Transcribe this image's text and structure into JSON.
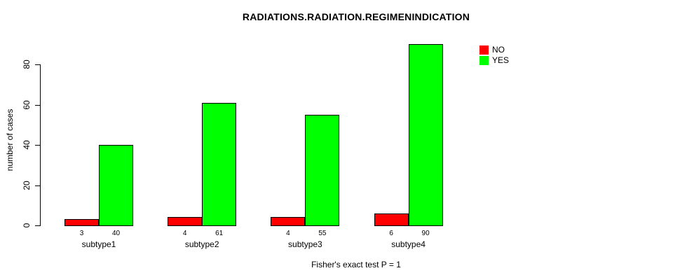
{
  "chart_data": {
    "type": "bar",
    "title": "RADIATIONS.RADIATION.REGIMENINDICATION",
    "xlabel": "Fisher's exact test P = 1",
    "ylabel": "number of cases",
    "categories": [
      "subtype1",
      "subtype2",
      "subtype3",
      "subtype4"
    ],
    "series": [
      {
        "name": "NO",
        "color": "#ff0000",
        "values": [
          3,
          4,
          4,
          6
        ]
      },
      {
        "name": "YES",
        "color": "#00ff00",
        "values": [
          40,
          61,
          55,
          90
        ]
      }
    ],
    "bar_value_labels": [
      [
        3,
        40
      ],
      [
        4,
        61
      ],
      [
        4,
        55
      ],
      [
        6,
        90
      ]
    ],
    "yticks": [
      0,
      20,
      40,
      60,
      80
    ],
    "ylim": [
      0,
      93
    ],
    "grid": false,
    "legend_position": "top-right"
  },
  "colors": {
    "background": "#ffffff",
    "axis": "#000000",
    "bar_border": "#000000",
    "no_color": "#ff0000",
    "yes_color": "#00ff00",
    "text": "#000000"
  }
}
